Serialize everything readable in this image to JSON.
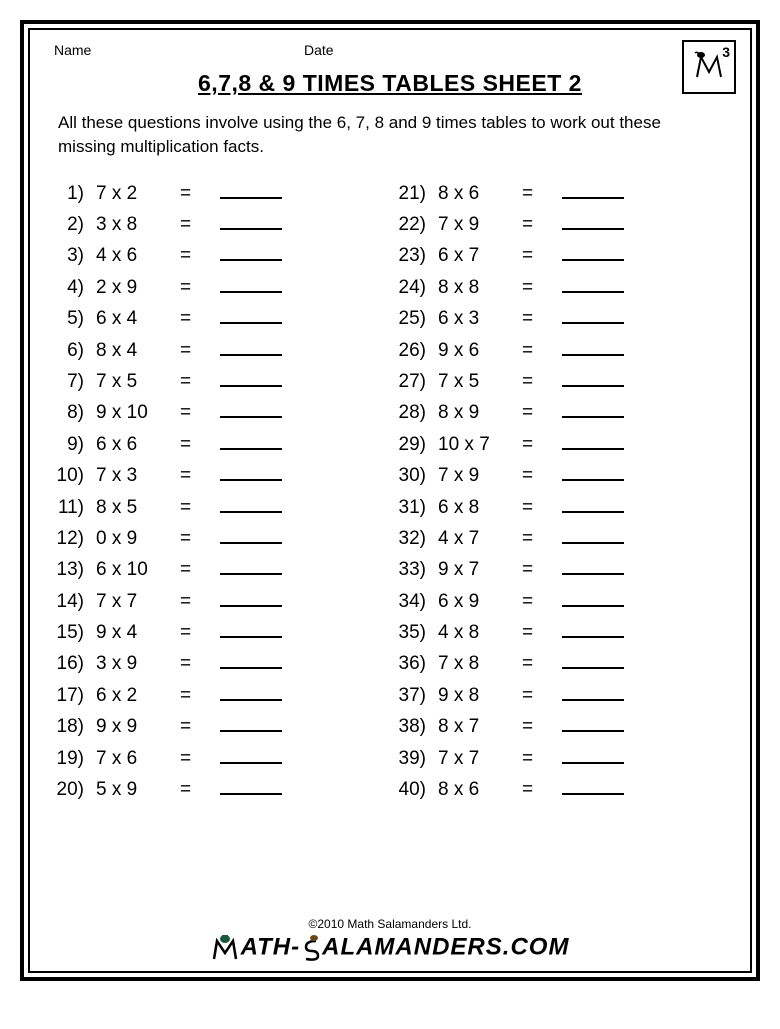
{
  "header": {
    "name_label": "Name",
    "date_label": "Date",
    "grade_number": "3"
  },
  "title": "6,7,8 & 9 TIMES TABLES SHEET 2",
  "instructions": "All these questions involve using the 6, 7, 8 and 9 times tables to work out these missing multiplication facts.",
  "typography": {
    "title_fontsize": 23,
    "body_fontsize": 19,
    "instruction_fontsize": 17,
    "label_fontsize": 14,
    "text_color": "#000000",
    "background_color": "#ffffff",
    "border_color": "#000000"
  },
  "layout": {
    "columns": 2,
    "rows_per_column": 20,
    "blank_line_width": 62,
    "row_height": 31.4
  },
  "questions_left": [
    {
      "n": "1)",
      "expr": "7 x 2"
    },
    {
      "n": "2)",
      "expr": "3 x 8"
    },
    {
      "n": "3)",
      "expr": "4 x 6"
    },
    {
      "n": "4)",
      "expr": "2 x 9"
    },
    {
      "n": "5)",
      "expr": "6 x 4"
    },
    {
      "n": "6)",
      "expr": "8 x 4"
    },
    {
      "n": "7)",
      "expr": "7 x 5"
    },
    {
      "n": "8)",
      "expr": "9 x 10"
    },
    {
      "n": "9)",
      "expr": "6 x 6"
    },
    {
      "n": "10)",
      "expr": "7 x 3"
    },
    {
      "n": "11)",
      "expr": "8 x 5"
    },
    {
      "n": "12)",
      "expr": "0 x 9"
    },
    {
      "n": "13)",
      "expr": "6 x 10"
    },
    {
      "n": "14)",
      "expr": "7 x 7"
    },
    {
      "n": "15)",
      "expr": "9 x 4"
    },
    {
      "n": "16)",
      "expr": "3 x 9"
    },
    {
      "n": "17)",
      "expr": "6 x 2"
    },
    {
      "n": "18)",
      "expr": "9 x 9"
    },
    {
      "n": "19)",
      "expr": "7 x 6"
    },
    {
      "n": "20)",
      "expr": "5 x 9"
    }
  ],
  "questions_right": [
    {
      "n": "21)",
      "expr": "8 x 6"
    },
    {
      "n": "22)",
      "expr": "7 x 9"
    },
    {
      "n": "23)",
      "expr": "6 x 7"
    },
    {
      "n": "24)",
      "expr": "8 x 8"
    },
    {
      "n": "25)",
      "expr": "6 x 3"
    },
    {
      "n": "26)",
      "expr": "9 x 6"
    },
    {
      "n": "27)",
      "expr": "7 x 5"
    },
    {
      "n": "28)",
      "expr": "8 x 9"
    },
    {
      "n": "29)",
      "expr": "10 x 7"
    },
    {
      "n": "30)",
      "expr": "7 x 9"
    },
    {
      "n": "31)",
      "expr": "6 x 8"
    },
    {
      "n": "32)",
      "expr": "4 x 7"
    },
    {
      "n": "33)",
      "expr": "9 x 7"
    },
    {
      "n": "34)",
      "expr": "6 x 9"
    },
    {
      "n": "35)",
      "expr": "4 x 8"
    },
    {
      "n": "36)",
      "expr": "7 x 8"
    },
    {
      "n": "37)",
      "expr": "9 x 8"
    },
    {
      "n": "38)",
      "expr": "8 x 7"
    },
    {
      "n": "39)",
      "expr": "7 x 7"
    },
    {
      "n": "40)",
      "expr": "8 x 6"
    }
  ],
  "equals_sign": "=",
  "footer": {
    "copyright": "©2010 Math Salamanders Ltd.",
    "brand_left": "ATH-",
    "brand_right": "ALAMANDERS.COM"
  }
}
